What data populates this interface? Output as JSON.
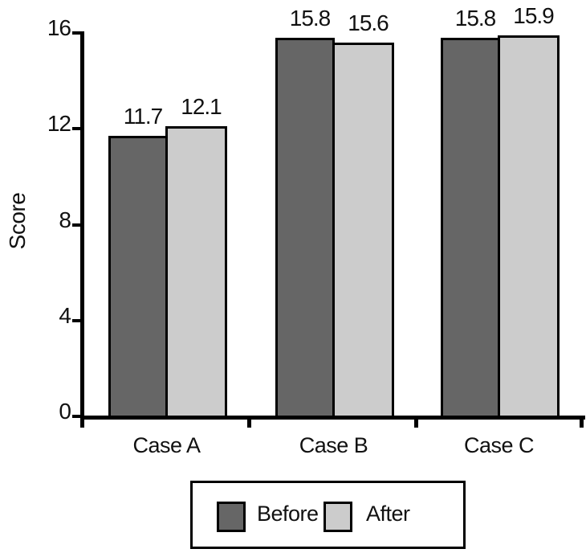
{
  "chart_data": {
    "type": "bar",
    "title": "",
    "categories": [
      "Case A",
      "Case B",
      "Case C"
    ],
    "series": [
      {
        "name": "Before",
        "color": "#666666",
        "values": [
          11.7,
          15.8,
          15.8
        ]
      },
      {
        "name": "After",
        "color": "#cccccc",
        "values": [
          12.1,
          15.6,
          15.9
        ]
      }
    ],
    "value_labels": [
      "11.7",
      "12.1",
      "15.8",
      "15.6",
      "15.8",
      "15.9"
    ],
    "xlabel": "",
    "ylabel": "Score",
    "yticks": [
      0,
      4,
      8,
      12,
      16
    ],
    "ylim": [
      0,
      16
    ],
    "grid": false,
    "legend_position": "bottom",
    "legend_entries": [
      "Before",
      "After"
    ],
    "bar_outline_color": "#000000",
    "axis_color": "#000000",
    "background_color": "#ffffff",
    "value_label_precision": 1
  }
}
